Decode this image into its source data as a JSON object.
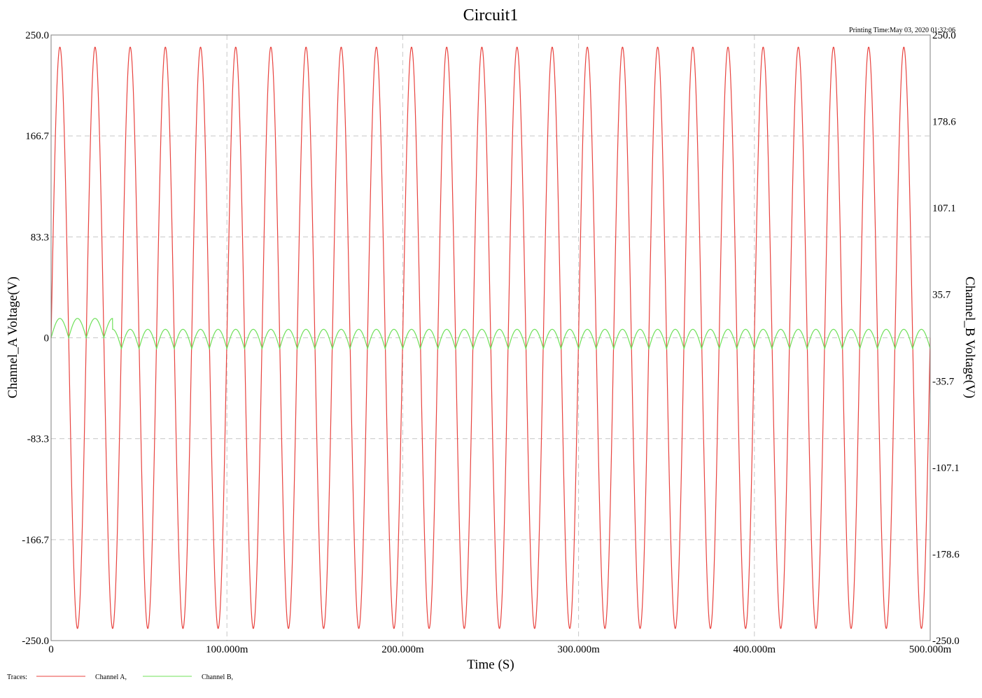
{
  "chart_data": {
    "type": "line",
    "title": "Circuit1",
    "printing_time": "Printing Time:May 03, 2020 01:32:06",
    "xlabel": "Time (S)",
    "ylabel_left": "Channel_A Voltage(V)",
    "ylabel_right": "Channel_B Voltage(V)",
    "xlim": [
      0,
      0.5
    ],
    "ylim_left": [
      -250,
      250
    ],
    "ylim_right": [
      -250,
      250
    ],
    "grid": true,
    "legend_prefix": "Traces:",
    "x_ticks": [
      {
        "value": 0,
        "label": "0"
      },
      {
        "value": 0.1,
        "label": "100.000m"
      },
      {
        "value": 0.2,
        "label": "200.000m"
      },
      {
        "value": 0.3,
        "label": "300.000m"
      },
      {
        "value": 0.4,
        "label": "400.000m"
      },
      {
        "value": 0.5,
        "label": "500.000m"
      }
    ],
    "y_ticks_left": [
      {
        "value": 250,
        "label": "250.0"
      },
      {
        "value": 166.7,
        "label": "166.7"
      },
      {
        "value": 83.3,
        "label": "83.3"
      },
      {
        "value": 0,
        "label": "0"
      },
      {
        "value": -83.3,
        "label": "-83.3"
      },
      {
        "value": -166.7,
        "label": "-166.7"
      },
      {
        "value": -250,
        "label": "-250.0"
      }
    ],
    "y_ticks_right": [
      {
        "value": 250,
        "label": "250.0"
      },
      {
        "value": 178.6,
        "label": "178.6"
      },
      {
        "value": 107.1,
        "label": "107.1"
      },
      {
        "value": 35.7,
        "label": "35.7"
      },
      {
        "value": -35.7,
        "label": "-35.7"
      },
      {
        "value": -107.1,
        "label": "-107.1"
      },
      {
        "value": -178.6,
        "label": "-178.6"
      },
      {
        "value": -250,
        "label": "-250.0"
      }
    ],
    "series": [
      {
        "name": "Channel A,",
        "color": "#e8433f",
        "kind": "sine",
        "amplitude": 240,
        "frequency_hz": 50,
        "phase_deg": 0
      },
      {
        "name": "Channel B,",
        "color": "#6fe05a",
        "kind": "half-wave-rectified-sine",
        "frequency_hz": 50,
        "startup": {
          "until": 0.035,
          "amplitude": 16,
          "offset": 0
        },
        "steady": {
          "amplitude": 16,
          "offset": -9
        }
      }
    ]
  }
}
